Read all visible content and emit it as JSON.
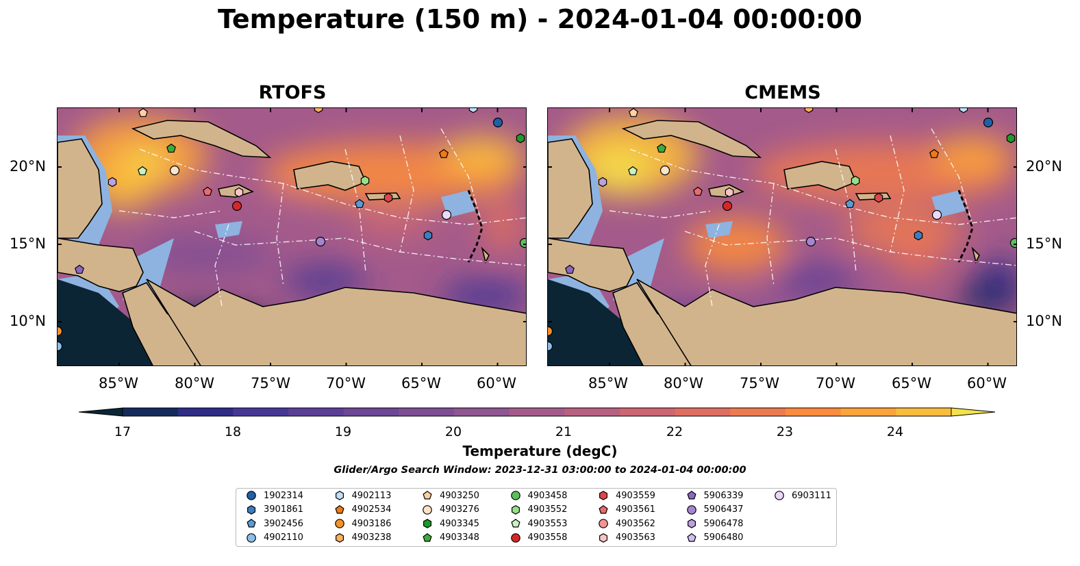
{
  "title": "Temperature (150 m) - 2024-01-04 00:00:00",
  "panels": [
    {
      "title": "RTOFS",
      "field": "rtofs"
    },
    {
      "title": "CMEMS",
      "field": "cmems"
    }
  ],
  "map": {
    "lon_ticks": [
      "85°W",
      "80°W",
      "75°W",
      "70°W",
      "65°W",
      "60°W"
    ],
    "lat_ticks": [
      "20°N",
      "15°N",
      "10°N"
    ],
    "land_color": "#d2b48c",
    "shelf_color": "#8eb3e0",
    "deep_color": "#0b2535"
  },
  "colorbar": {
    "label": "Temperature (degC)",
    "ticks": [
      "17",
      "18",
      "19",
      "20",
      "21",
      "22",
      "23",
      "24"
    ],
    "vmin": 17,
    "vmax": 24.5,
    "colors": [
      "#0b2535",
      "#142a5b",
      "#2e2c86",
      "#463795",
      "#5b3f97",
      "#6c4795",
      "#7d4e94",
      "#8f5691",
      "#a45b8b",
      "#b8607f",
      "#cd6672",
      "#df6e60",
      "#ee7a4f",
      "#fb8c3e",
      "#fca33a",
      "#fbbc3c",
      "#f4e24a"
    ]
  },
  "search_window": "Glider/Argo Search Window: 2023-12-31 03:00:00 to 2024-01-04 00:00:00",
  "legend": [
    {
      "label": "1902314",
      "shape": "circle",
      "color": "#1f5fa8"
    },
    {
      "label": "3901861",
      "shape": "hexagon",
      "color": "#3d7ec1"
    },
    {
      "label": "3902456",
      "shape": "pentagon",
      "color": "#5b9bd5"
    },
    {
      "label": "4902110",
      "shape": "circle",
      "color": "#8cc0ea"
    },
    {
      "label": "4902113",
      "shape": "hexagon",
      "color": "#bfe0f7"
    },
    {
      "label": "4902534",
      "shape": "pentagon",
      "color": "#f07a13"
    },
    {
      "label": "4903186",
      "shape": "circle",
      "color": "#f7912a"
    },
    {
      "label": "4903238",
      "shape": "hexagon",
      "color": "#fbb160"
    },
    {
      "label": "4903250",
      "shape": "pentagon",
      "color": "#fdd0a2"
    },
    {
      "label": "4903276",
      "shape": "circle",
      "color": "#fde3c8"
    },
    {
      "label": "4903345",
      "shape": "hexagon",
      "color": "#1e9a2c"
    },
    {
      "label": "4903348",
      "shape": "pentagon",
      "color": "#3aad3a"
    },
    {
      "label": "4903458",
      "shape": "circle",
      "color": "#5cc05c"
    },
    {
      "label": "4903552",
      "shape": "hexagon",
      "color": "#98df8a"
    },
    {
      "label": "4903553",
      "shape": "pentagon",
      "color": "#c8f2c0"
    },
    {
      "label": "4903558",
      "shape": "circle",
      "color": "#d62728"
    },
    {
      "label": "4903559",
      "shape": "hexagon",
      "color": "#e0454a"
    },
    {
      "label": "4903561",
      "shape": "pentagon",
      "color": "#ea6b6f"
    },
    {
      "label": "4903562",
      "shape": "circle",
      "color": "#f29395"
    },
    {
      "label": "4903563",
      "shape": "hexagon",
      "color": "#f8c4c4"
    },
    {
      "label": "5906339",
      "shape": "pentagon",
      "color": "#8b68c0"
    },
    {
      "label": "5906437",
      "shape": "circle",
      "color": "#a584d0"
    },
    {
      "label": "5906478",
      "shape": "hexagon",
      "color": "#bca0e0"
    },
    {
      "label": "5906480",
      "shape": "pentagon",
      "color": "#d2bdf0"
    },
    {
      "label": "6903111",
      "shape": "circle",
      "color": "#ead9fb"
    }
  ]
}
